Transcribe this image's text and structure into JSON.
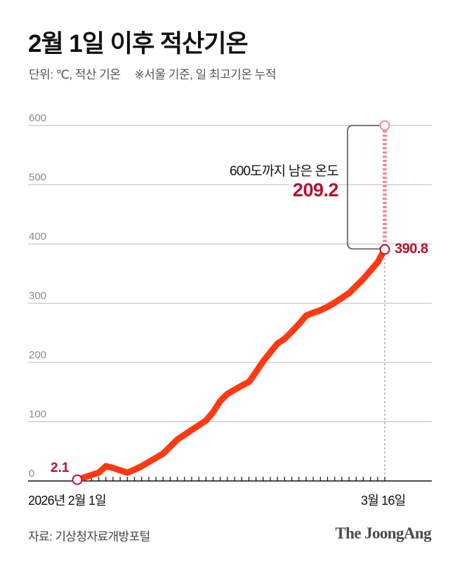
{
  "header": {
    "title": "2월 1일 이후 적산기온",
    "unit_label": "단위: ℃, 적산 기온",
    "note": "※서울 기준, 일 최고기온 누적"
  },
  "annotation": {
    "title": "600도까지 남은 온도",
    "value": "209.2",
    "start_label": "2.1",
    "end_label": "390.8"
  },
  "footer": {
    "source": "자료: 기상청자료개방포털",
    "logo": "The JoongAng"
  },
  "colors": {
    "line": "#ff3a12",
    "accent_text": "#b8102f",
    "remaining_dashed": "#f08a9a",
    "grid": "#c8c8c8",
    "axis": "#111111"
  },
  "chart_data": {
    "type": "line",
    "title": "2월 1일 이후 적산기온",
    "subtitle": "단위: ℃, 적산 기온 ※서울 기준, 일 최고기온 누적",
    "xlabel": "",
    "ylabel": "℃",
    "ylim": [
      0,
      600
    ],
    "yticks": [
      0,
      100,
      200,
      300,
      400,
      500,
      600
    ],
    "grid": true,
    "x_tick_labels": [
      "2026년 2월 1일",
      "3월 16일"
    ],
    "x_start": "2026-02-01",
    "x_end": "2026-03-16",
    "series": [
      {
        "name": "적산기온",
        "values": [
          2.1,
          6,
          10,
          14,
          25,
          22,
          18,
          14,
          19,
          25,
          32,
          39,
          46,
          58,
          70,
          78,
          86,
          94,
          102,
          116,
          135,
          147,
          154,
          161,
          167,
          184,
          202,
          217,
          232,
          240,
          252,
          265,
          279,
          284,
          288,
          294,
          301,
          309,
          317,
          329,
          341,
          355,
          369,
          390.8
        ]
      }
    ],
    "annotations": [
      {
        "label": "2.1",
        "x": "2월 1일",
        "y": 2.1
      },
      {
        "label": "390.8",
        "x": "3월 16일",
        "y": 390.8
      },
      {
        "label": "600도까지 남은 온도",
        "value": 209.2,
        "from": 390.8,
        "to": 600
      }
    ]
  }
}
